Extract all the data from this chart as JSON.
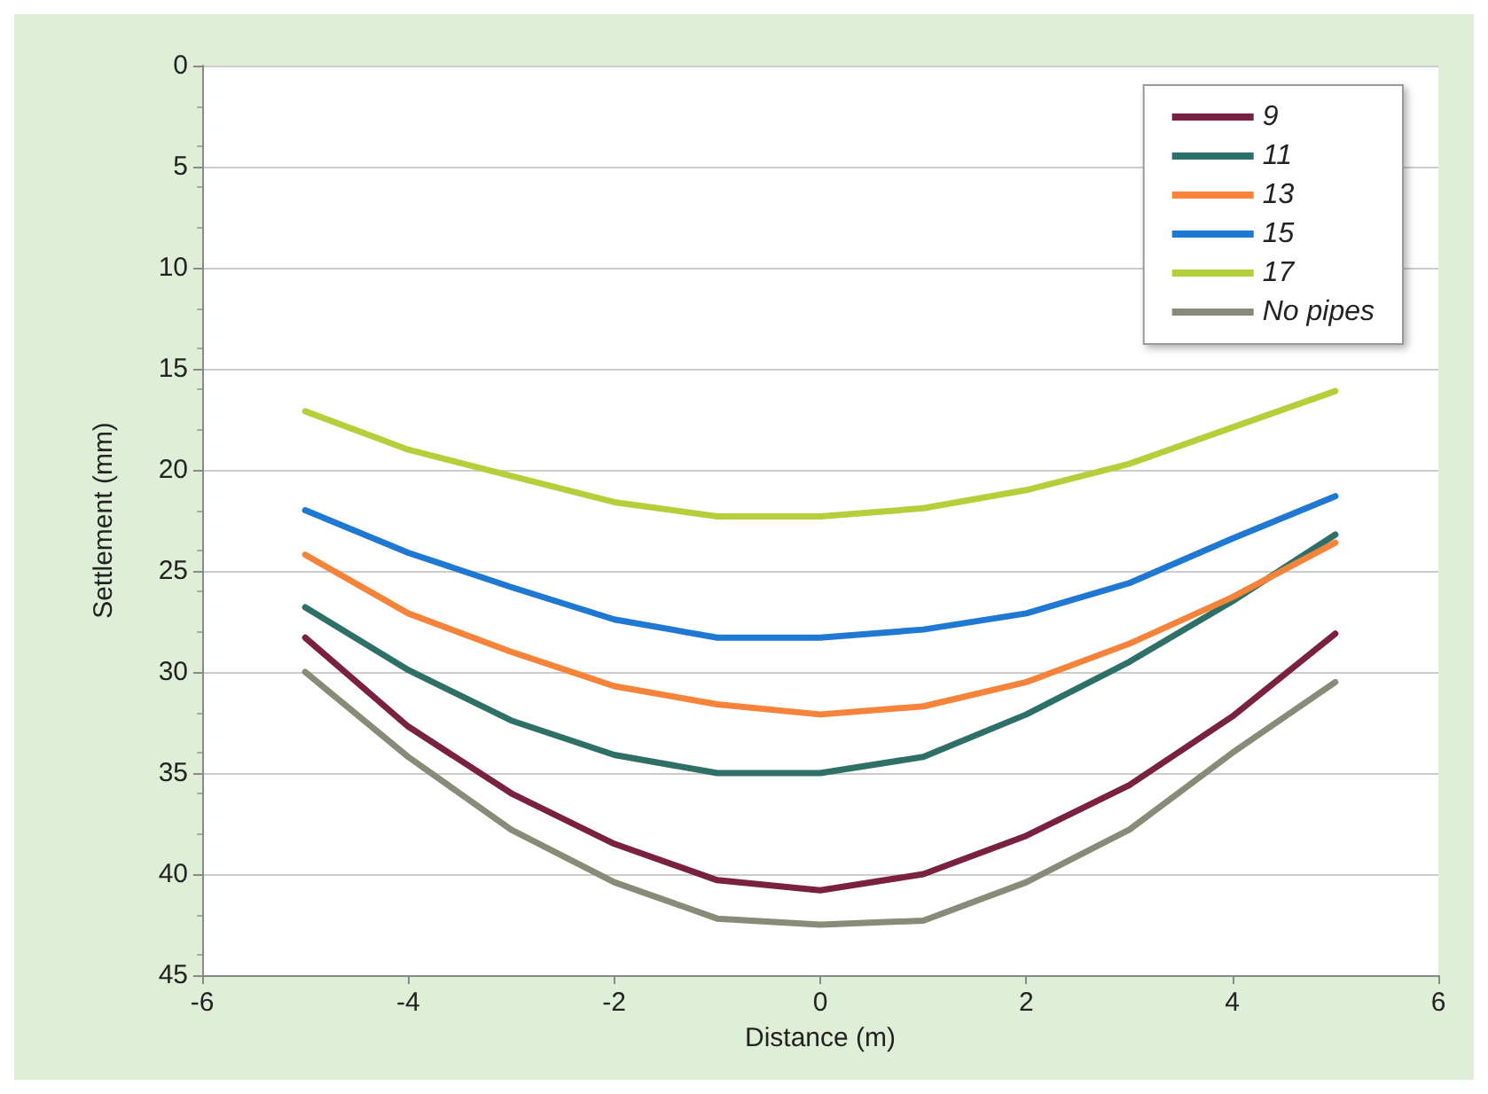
{
  "chart_data": {
    "type": "line",
    "xlabel": "Distance (m)",
    "ylabel": "Settlement (mm)",
    "x": [
      -5,
      -4,
      -3,
      -2,
      -1,
      0,
      1,
      2,
      3,
      4,
      5
    ],
    "series": [
      {
        "name": "9",
        "color": "#7a2040",
        "values": [
          28.3,
          32.7,
          36.0,
          38.5,
          40.3,
          40.8,
          40.0,
          38.1,
          35.6,
          32.2,
          28.1
        ]
      },
      {
        "name": "11",
        "color": "#2e7068",
        "values": [
          26.8,
          29.9,
          32.4,
          34.1,
          35.0,
          35.0,
          34.2,
          32.1,
          29.5,
          26.5,
          23.2
        ]
      },
      {
        "name": "13",
        "color": "#f5843a",
        "values": [
          24.2,
          27.1,
          29.0,
          30.7,
          31.6,
          32.1,
          31.7,
          30.5,
          28.6,
          26.3,
          23.6
        ]
      },
      {
        "name": "15",
        "color": "#1f78d1",
        "values": [
          22.0,
          24.1,
          25.8,
          27.4,
          28.3,
          28.3,
          27.9,
          27.1,
          25.6,
          23.4,
          21.3
        ]
      },
      {
        "name": "17",
        "color": "#b5cf3a",
        "values": [
          17.1,
          19.0,
          20.3,
          21.6,
          22.3,
          22.3,
          21.9,
          21.0,
          19.7,
          17.9,
          16.1
        ]
      },
      {
        "name": "No pipes",
        "color": "#8a8a78",
        "values": [
          30.0,
          34.2,
          37.8,
          40.4,
          42.2,
          42.5,
          42.3,
          40.4,
          37.8,
          34.0,
          30.5
        ]
      }
    ],
    "xlim": [
      -6,
      6
    ],
    "xticks": [
      -6,
      -4,
      -2,
      0,
      2,
      4,
      6
    ],
    "ylim": [
      45,
      0
    ],
    "yticks": [
      0,
      5,
      10,
      15,
      20,
      25,
      30,
      35,
      40,
      45
    ],
    "grid": "y",
    "legend": "top right",
    "marker": "none",
    "line_style": "solid"
  }
}
